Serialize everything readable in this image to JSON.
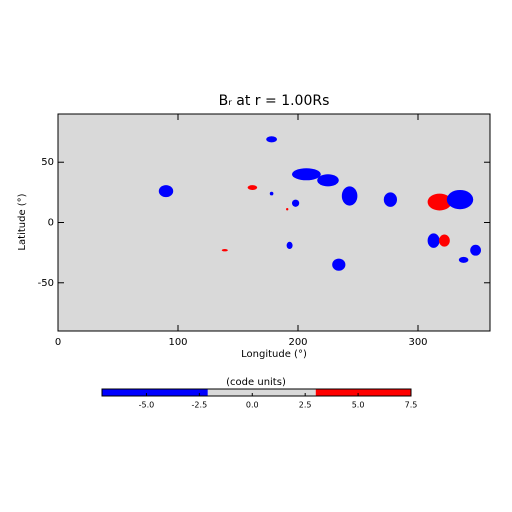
{
  "chart_data": {
    "type": "map",
    "title": "Bᵣ at r = 1.00Rs",
    "xlabel": "Longitude (°)",
    "ylabel": "Latitude (°)",
    "xlim": [
      0,
      360
    ],
    "ylim": [
      -90,
      90
    ],
    "xticks": [
      0,
      100,
      200,
      300
    ],
    "yticks": [
      -50,
      0,
      50
    ],
    "background": "#d9d9d9",
    "features": [
      {
        "lon": 90,
        "lat": 26,
        "dlon": 12,
        "dlat": 10,
        "value": -5
      },
      {
        "lon": 178,
        "lat": 69,
        "dlon": 9,
        "dlat": 5,
        "value": -5
      },
      {
        "lon": 162,
        "lat": 29,
        "dlon": 8,
        "dlat": 4,
        "value": 5
      },
      {
        "lon": 178,
        "lat": 24,
        "dlon": 3,
        "dlat": 3,
        "value": -5
      },
      {
        "lon": 207,
        "lat": 40,
        "dlon": 24,
        "dlat": 10,
        "value": -5
      },
      {
        "lon": 225,
        "lat": 35,
        "dlon": 18,
        "dlat": 10,
        "value": -5
      },
      {
        "lon": 198,
        "lat": 16,
        "dlon": 6,
        "dlat": 6,
        "value": -5
      },
      {
        "lon": 191,
        "lat": 11,
        "dlon": 2,
        "dlat": 2,
        "value": 5
      },
      {
        "lon": 243,
        "lat": 22,
        "dlon": 13,
        "dlat": 16,
        "value": -5
      },
      {
        "lon": 277,
        "lat": 19,
        "dlon": 11,
        "dlat": 12,
        "value": -5
      },
      {
        "lon": 318,
        "lat": 17,
        "dlon": 20,
        "dlat": 14,
        "value": 5
      },
      {
        "lon": 335,
        "lat": 19,
        "dlon": 22,
        "dlat": 16,
        "value": -5
      },
      {
        "lon": 313,
        "lat": -15,
        "dlon": 10,
        "dlat": 12,
        "value": -5
      },
      {
        "lon": 322,
        "lat": -15,
        "dlon": 9,
        "dlat": 10,
        "value": 5
      },
      {
        "lon": 348,
        "lat": -23,
        "dlon": 9,
        "dlat": 9,
        "value": -5
      },
      {
        "lon": 338,
        "lat": -31,
        "dlon": 8,
        "dlat": 5,
        "value": -5
      },
      {
        "lon": 193,
        "lat": -19,
        "dlon": 5,
        "dlat": 6,
        "value": -5
      },
      {
        "lon": 234,
        "lat": -35,
        "dlon": 11,
        "dlat": 10,
        "value": -5
      },
      {
        "lon": 139,
        "lat": -23,
        "dlon": 5,
        "dlat": 2,
        "value": 5
      }
    ],
    "colorbar": {
      "label": "(code units)",
      "levels": [
        -7.1,
        -2.1,
        3.0,
        7.5
      ],
      "colors": [
        "#0000ff",
        "#d9d9d9",
        "#ff0000"
      ],
      "ticks": [
        {
          "value": -5,
          "label": "-5.0"
        },
        {
          "value": -2.5,
          "label": "-2.5"
        },
        {
          "value": 0,
          "label": "0.0"
        },
        {
          "value": 2.5,
          "label": "2.5"
        },
        {
          "value": 5,
          "label": "5.0"
        },
        {
          "value": 7.5,
          "label": "7.5"
        }
      ]
    }
  }
}
